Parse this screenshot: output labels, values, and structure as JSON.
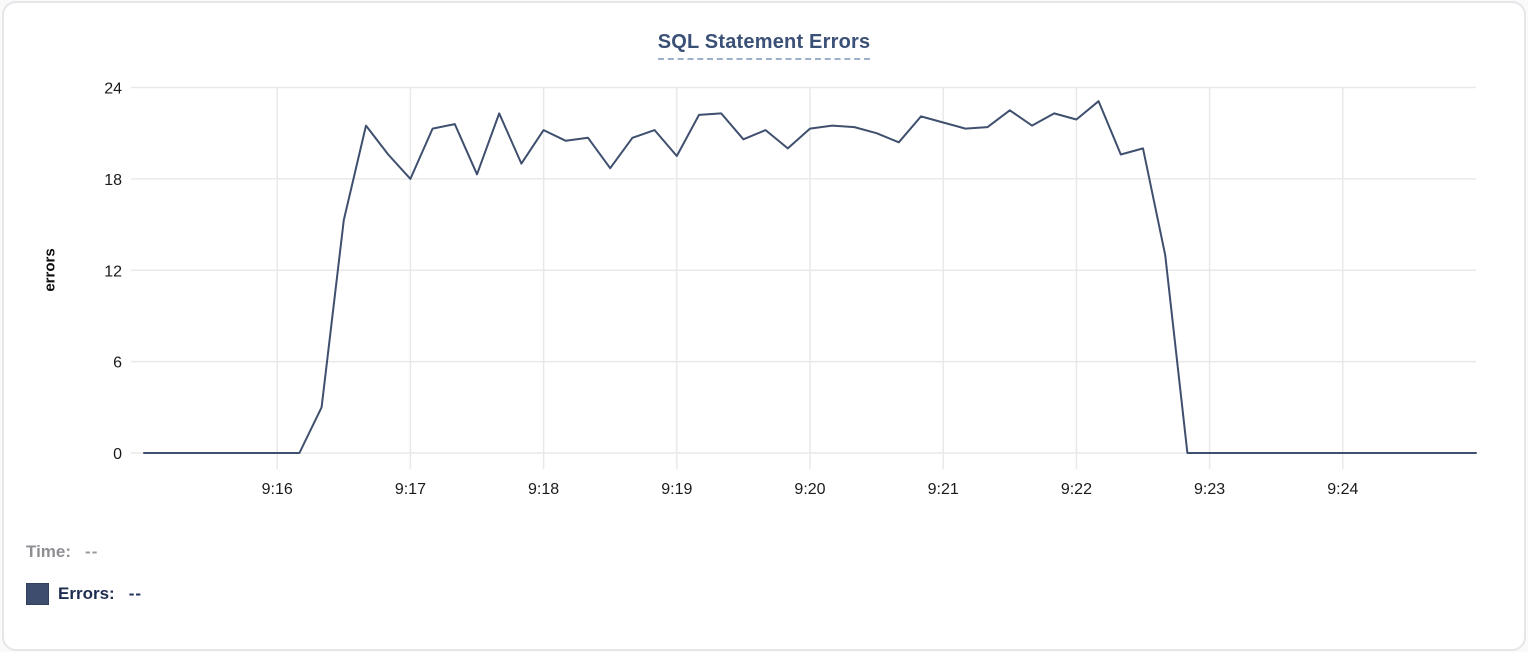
{
  "chart": {
    "title": "SQL Statement Errors",
    "y_axis_label": "errors"
  },
  "legend": {
    "time_label": "Time:",
    "time_value": "--",
    "errors_label": "Errors:",
    "errors_value": "--"
  },
  "colors": {
    "line": "#3f4f6e",
    "title_text": "#3b5076",
    "title_underline": "#9db0cb",
    "legend_swatch": "#3e4d6e",
    "grid": "#e9e9e9",
    "tick_text": "#1a1a1a"
  },
  "chart_data": {
    "type": "line",
    "title": "SQL Statement Errors",
    "xlabel": "",
    "ylabel": "errors",
    "ylim": [
      0,
      24
    ],
    "y_ticks": [
      0,
      6,
      12,
      18,
      24
    ],
    "x_tick_labels": [
      "9:16",
      "9:17",
      "9:18",
      "9:19",
      "9:20",
      "9:21",
      "9:22",
      "9:23",
      "9:24"
    ],
    "x_start": "9:15:00",
    "x_end": "9:25:00",
    "point_interval_seconds": 10,
    "grid": true,
    "legend_position": "bottom-left",
    "series": [
      {
        "name": "Errors",
        "color": "#3f4f6e",
        "values": [
          0,
          0,
          0,
          0,
          0,
          0,
          0,
          0,
          3,
          15.3,
          21.5,
          19.6,
          18,
          21.3,
          21.6,
          18.3,
          22.3,
          19,
          21.2,
          20.5,
          20.7,
          18.7,
          20.7,
          21.2,
          19.5,
          22.2,
          22.3,
          20.6,
          21.2,
          20,
          21.3,
          21.5,
          21.4,
          21,
          20.4,
          22.1,
          21.7,
          21.3,
          21.4,
          22.5,
          21.5,
          22.3,
          21.9,
          23.1,
          19.6,
          20,
          13,
          0,
          0,
          0,
          0,
          0,
          0,
          0,
          0,
          0,
          0,
          0,
          0,
          0,
          0
        ]
      }
    ]
  }
}
